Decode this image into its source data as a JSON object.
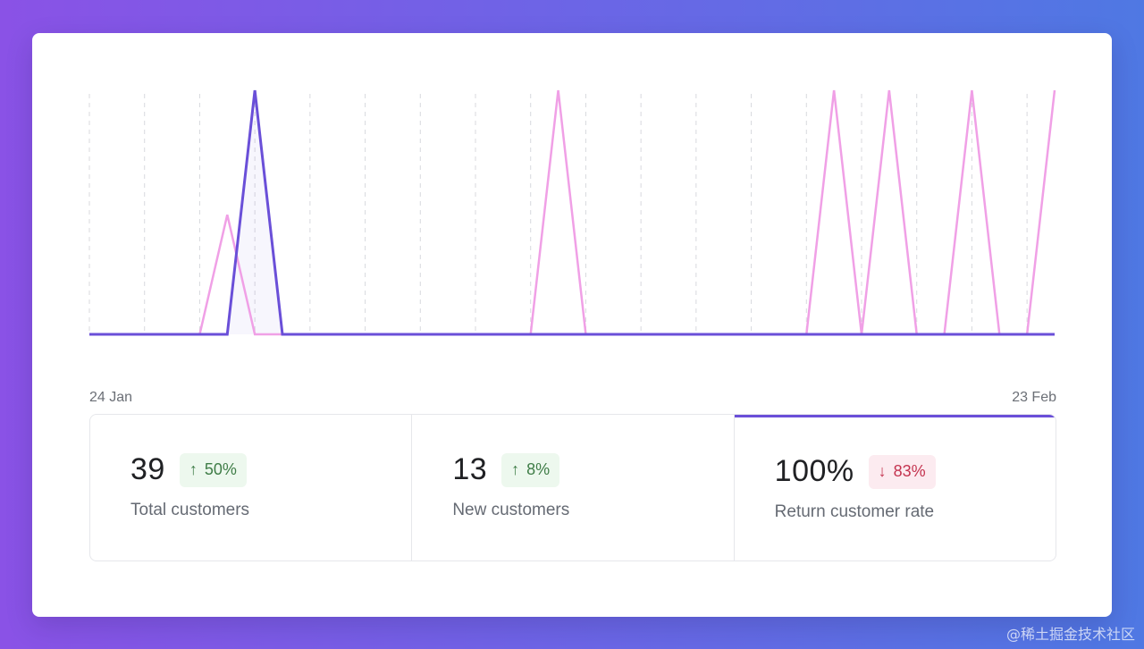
{
  "chart": {
    "x_start_label": "24 Jan",
    "x_end_label": "23 Feb"
  },
  "chart_data": {
    "type": "line",
    "x_range": [
      "24 Jan",
      "23 Feb"
    ],
    "series": [
      {
        "color": "#f0a0e6",
        "values": [
          0,
          0,
          0,
          0,
          0,
          0.49,
          0,
          0,
          0,
          0,
          0,
          0,
          0,
          0,
          0,
          0,
          0,
          1,
          0,
          0,
          0,
          0,
          0,
          0,
          0,
          0,
          0,
          1,
          0,
          1,
          0,
          0,
          1,
          0,
          0,
          1
        ]
      },
      {
        "color": "#6a4fd8",
        "values": [
          0,
          0,
          0,
          0,
          0,
          0,
          1,
          0,
          0,
          0,
          0,
          0,
          0,
          0,
          0,
          0,
          0,
          0,
          0,
          0,
          0,
          0,
          0,
          0,
          0,
          0,
          0,
          0,
          0,
          0,
          0,
          0,
          0,
          0,
          0,
          0
        ]
      }
    ],
    "grid": "dashed vertical"
  },
  "stats": [
    {
      "value": "39",
      "change": "50%",
      "direction": "up",
      "label": "Total customers"
    },
    {
      "value": "13",
      "change": "8%",
      "direction": "up",
      "label": "New customers"
    },
    {
      "value": "100%",
      "change": "83%",
      "direction": "down",
      "label": "Return customer rate"
    }
  ],
  "icons": {
    "up": "arrow-up-icon",
    "down": "arrow-down-icon"
  },
  "watermark": "@稀土掘金技术社区",
  "colors": {
    "accent": "#6a4fd8",
    "secondary_line": "#f0a0e6",
    "badge_up_bg": "#edf8ee",
    "badge_up_text": "#3f7d47",
    "badge_down_bg": "#fcebf0",
    "badge_down_text": "#c4334f"
  }
}
